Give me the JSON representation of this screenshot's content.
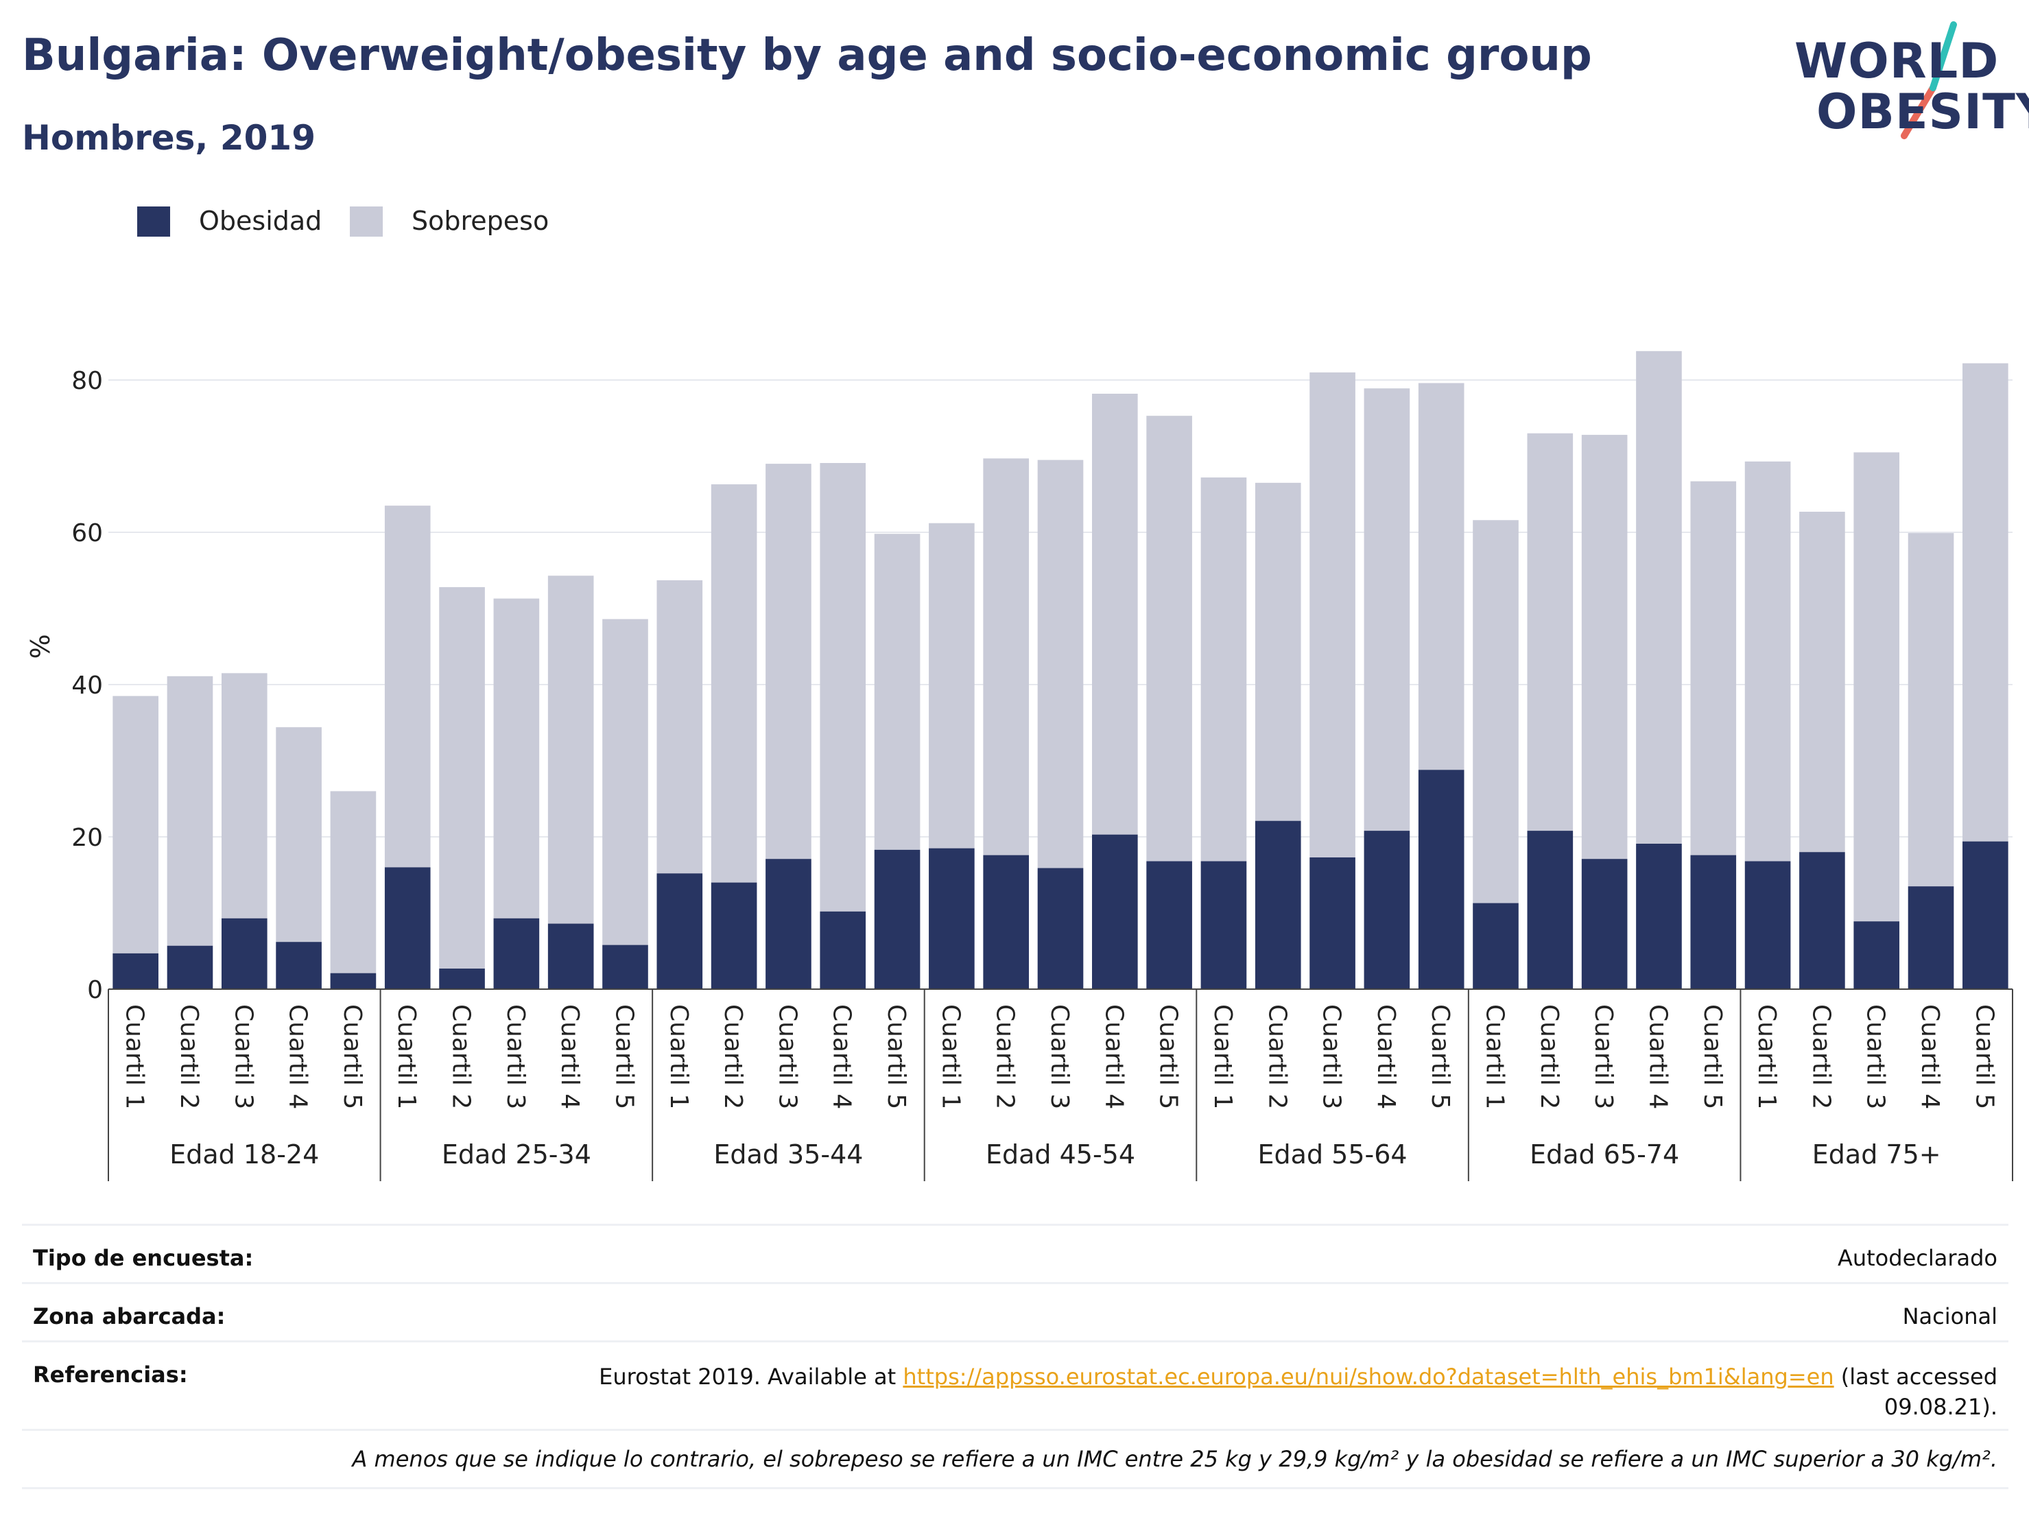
{
  "header": {
    "title": "Bulgaria: Overweight/obesity by age and socio-economic group",
    "subtitle": "Hombres, 2019"
  },
  "logo": {
    "line1": "WORLD",
    "line2": "OBESITY",
    "icon": "world-obesity-logo-icon",
    "colors": {
      "text": "#283562",
      "stroke_top": "#2fbfb8",
      "stroke_bottom": "#e8685a"
    }
  },
  "legend": [
    {
      "label": "Obesidad",
      "color": "#283562"
    },
    {
      "label": "Sobrepeso",
      "color": "#c9cbd8"
    }
  ],
  "chart_data": {
    "type": "bar",
    "stacked": true,
    "ylabel": "%",
    "ylim": [
      0,
      90
    ],
    "yticks": [
      0,
      20,
      40,
      60,
      80
    ],
    "grid": true,
    "legend_position": "top-left",
    "quartile_labels": [
      "Cuartil 1",
      "Cuartil 2",
      "Cuartil 3",
      "Cuartil 4",
      "Cuartil 5"
    ],
    "groups": [
      "Edad 18-24",
      "Edad 25-34",
      "Edad 35-44",
      "Edad 45-54",
      "Edad 55-64",
      "Edad 65-74",
      "Edad 75+"
    ],
    "series": [
      {
        "name": "Obesidad",
        "color": "#283562",
        "values": [
          4.7,
          5.7,
          9.3,
          6.2,
          2.1,
          16.0,
          2.7,
          9.3,
          8.6,
          5.8,
          15.2,
          14.0,
          17.1,
          10.2,
          18.3,
          18.5,
          17.6,
          15.9,
          20.3,
          16.8,
          16.8,
          22.1,
          17.3,
          20.8,
          28.8,
          11.3,
          20.8,
          17.1,
          19.1,
          17.6,
          16.8,
          18.0,
          8.9,
          13.5,
          19.4
        ]
      },
      {
        "name": "Sobrepeso",
        "color": "#c9cbd8",
        "values": [
          33.8,
          35.4,
          32.2,
          28.2,
          23.9,
          47.5,
          50.1,
          42.0,
          45.7,
          42.8,
          38.5,
          52.3,
          51.9,
          58.9,
          41.5,
          42.7,
          52.1,
          53.6,
          57.9,
          58.5,
          50.4,
          44.4,
          63.7,
          58.1,
          50.8,
          50.3,
          52.2,
          55.7,
          64.7,
          49.1,
          52.5,
          44.7,
          61.6,
          46.4,
          62.8
        ]
      }
    ]
  },
  "meta": {
    "rows": [
      {
        "label": "Tipo de encuesta:",
        "value": "Autodeclarado"
      },
      {
        "label": "Zona abarcada:",
        "value": "Nacional"
      }
    ],
    "references": {
      "label": "Referencias:",
      "prefix": "Eurostat 2019. Available at ",
      "link": "https://appsso.eurostat.ec.europa.eu/nui/show.do?dataset=hlth_ehis_bm1i&lang=en",
      "suffix": " (last accessed",
      "date": "09.08.21)."
    },
    "note": "A menos que se indique lo contrario, el sobrepeso se refiere a un IMC entre 25 kg y 29,9 kg/m² y la obesidad se refiere a un IMC superior a 30 kg/m²."
  }
}
